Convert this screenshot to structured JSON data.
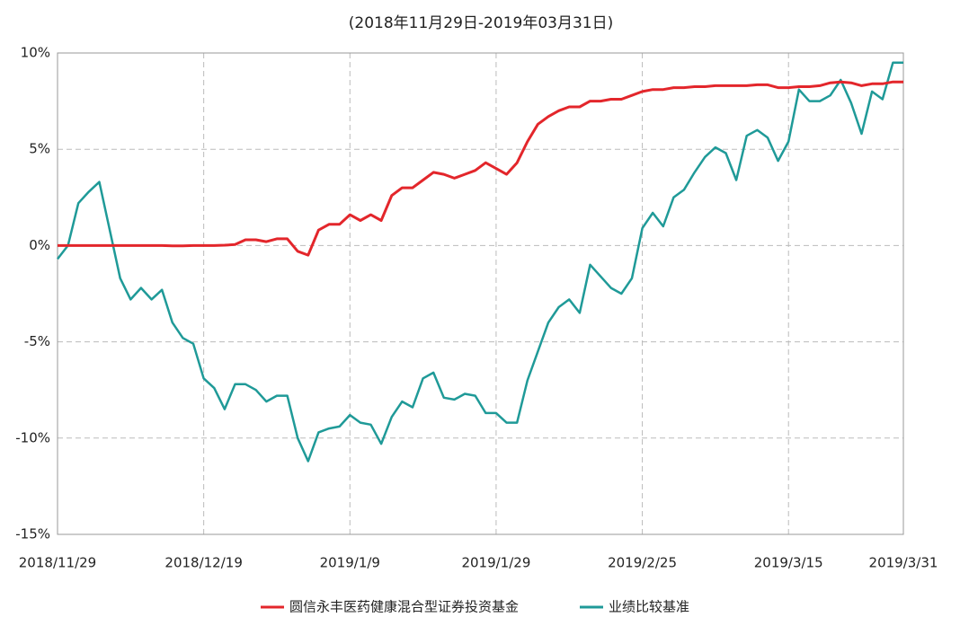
{
  "chart_data": {
    "type": "line",
    "subtitle": "(2018年11月29日-2019年03月31日)",
    "categories": [
      "2018/11/29",
      null,
      null,
      null,
      null,
      null,
      null,
      null,
      null,
      null,
      null,
      null,
      null,
      null,
      "2018/12/19",
      null,
      null,
      null,
      null,
      null,
      null,
      null,
      null,
      null,
      null,
      null,
      null,
      null,
      "2019/1/9",
      null,
      null,
      null,
      null,
      null,
      null,
      null,
      null,
      null,
      null,
      null,
      null,
      null,
      "2019/1/29",
      null,
      null,
      null,
      null,
      null,
      null,
      null,
      null,
      null,
      null,
      null,
      null,
      null,
      "2019/2/25",
      null,
      null,
      null,
      null,
      null,
      null,
      null,
      null,
      null,
      null,
      null,
      null,
      null,
      "2019/3/15",
      null,
      null,
      null,
      null,
      null,
      null,
      null,
      null,
      null,
      null,
      "2019/3/31"
    ],
    "series": [
      {
        "name": "圆信永丰医药健康混合型证券投资基金",
        "color": "#e3262b",
        "values": [
          0,
          0,
          0,
          0,
          0,
          0,
          0,
          0,
          0,
          0,
          0,
          -0.02,
          -0.02,
          0,
          0,
          0,
          0.02,
          0.05,
          0.3,
          0.3,
          0.2,
          0.35,
          0.35,
          -0.3,
          -0.5,
          0.8,
          1.1,
          1.1,
          1.6,
          1.3,
          1.6,
          1.3,
          2.6,
          3.0,
          3.0,
          3.4,
          3.8,
          3.7,
          3.5,
          3.7,
          3.9,
          4.3,
          4.0,
          3.7,
          4.3,
          5.4,
          6.3,
          6.7,
          7.0,
          7.2,
          7.2,
          7.5,
          7.5,
          7.6,
          7.6,
          7.8,
          8.0,
          8.1,
          8.1,
          8.2,
          8.2,
          8.25,
          8.25,
          8.3,
          8.3,
          8.3,
          8.3,
          8.35,
          8.35,
          8.2,
          8.2,
          8.25,
          8.25,
          8.3,
          8.45,
          8.5,
          8.45,
          8.3,
          8.4,
          8.4,
          8.5,
          8.5
        ]
      },
      {
        "name": "业绩比较基准",
        "color": "#1f9a98",
        "values": [
          -0.7,
          0,
          2.2,
          2.8,
          3.3,
          0.8,
          -1.7,
          -2.8,
          -2.2,
          -2.8,
          -2.3,
          -4.0,
          -4.8,
          -5.1,
          -6.9,
          -7.4,
          -8.5,
          -7.2,
          -7.2,
          -7.5,
          -8.1,
          -7.8,
          -7.8,
          -10.0,
          -11.2,
          -9.7,
          -9.5,
          -9.4,
          -8.8,
          -9.2,
          -9.3,
          -10.3,
          -8.9,
          -8.1,
          -8.4,
          -6.9,
          -6.6,
          -7.9,
          -8.0,
          -7.7,
          -7.8,
          -8.7,
          -8.7,
          -9.2,
          -9.2,
          -7.0,
          -5.5,
          -4.0,
          -3.2,
          -2.8,
          -3.5,
          -1.0,
          -1.6,
          -2.2,
          -2.5,
          -1.7,
          0.9,
          1.7,
          1.0,
          2.5,
          2.9,
          3.8,
          4.6,
          5.1,
          4.8,
          3.4,
          5.7,
          6.0,
          5.6,
          4.4,
          5.4,
          8.1,
          7.5,
          7.5,
          7.8,
          8.6,
          7.4,
          5.8,
          8.0,
          7.6,
          9.5,
          9.5
        ]
      }
    ],
    "ylim": [
      -15,
      10
    ],
    "yticks": [
      {
        "value": -15,
        "label": "-15%"
      },
      {
        "value": -10,
        "label": "-10%"
      },
      {
        "value": -5,
        "label": "-5%"
      },
      {
        "value": 0,
        "label": "0%"
      },
      {
        "value": 5,
        "label": "5%"
      },
      {
        "value": 10,
        "label": "10%"
      }
    ],
    "grid": true
  }
}
